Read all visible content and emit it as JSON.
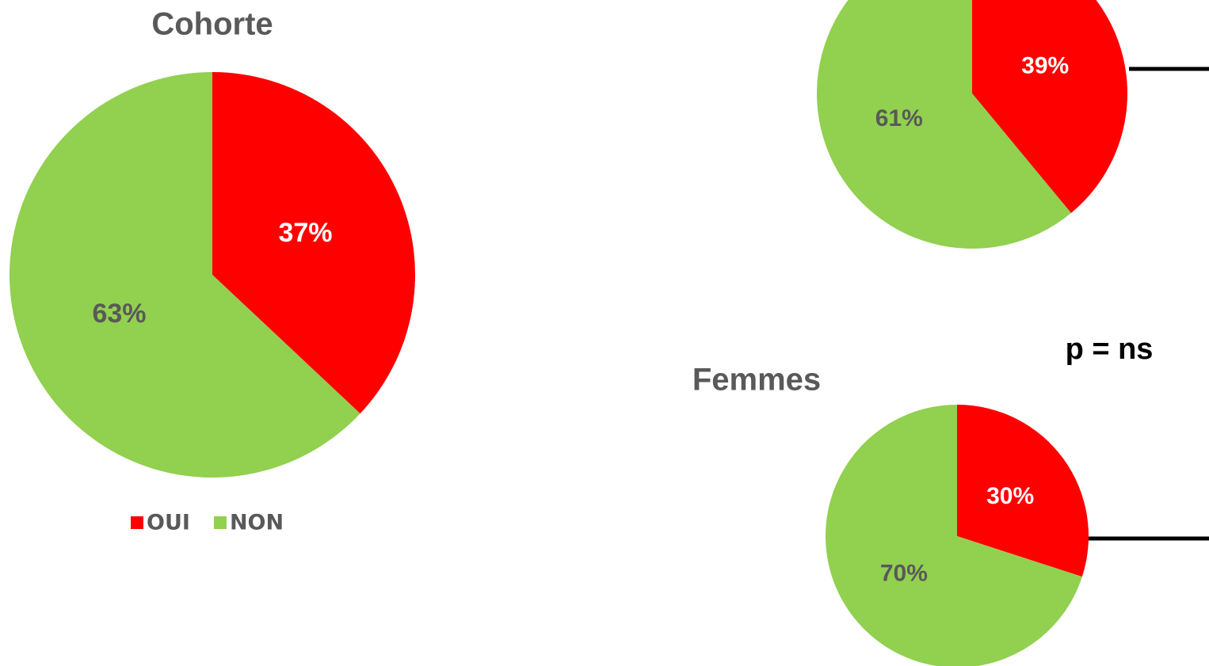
{
  "chart_data": [
    {
      "type": "pie",
      "title": "Cohorte",
      "categories": [
        "OUI",
        "NON"
      ],
      "values": [
        37,
        63
      ],
      "value_labels": [
        "37%",
        "63%"
      ],
      "colors": [
        "#ff0000",
        "#92d050"
      ],
      "legend": "bottom"
    },
    {
      "type": "pie",
      "categories": [
        "OUI",
        "NON"
      ],
      "values": [
        39,
        61
      ],
      "value_labels": [
        "39%",
        "61%"
      ],
      "colors": [
        "#ff0000",
        "#92d050"
      ]
    },
    {
      "type": "pie",
      "title": "Femmes",
      "annotation": "p = ns",
      "categories": [
        "OUI",
        "NON"
      ],
      "values": [
        30,
        70
      ],
      "value_labels": [
        "30%",
        "70%"
      ],
      "colors": [
        "#ff0000",
        "#92d050"
      ]
    }
  ]
}
